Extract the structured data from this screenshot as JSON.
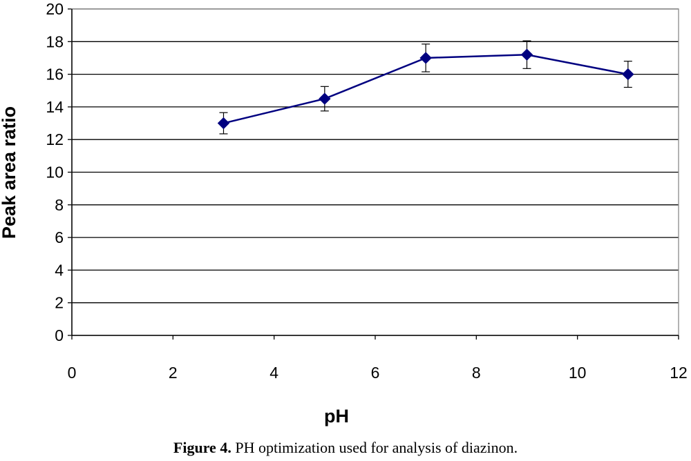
{
  "chart_data": {
    "type": "line",
    "title": "",
    "xlabel": "pH",
    "ylabel": "Peak area ratio",
    "xlim": [
      0,
      12
    ],
    "ylim": [
      0,
      20
    ],
    "xticks": [
      0,
      2,
      4,
      6,
      8,
      10,
      12
    ],
    "yticks": [
      0,
      2,
      4,
      6,
      8,
      10,
      12,
      14,
      16,
      18,
      20
    ],
    "grid": "horizontal",
    "legend": "none",
    "series": [
      {
        "color": "#000080",
        "marker": "diamond",
        "x": [
          3,
          5,
          7,
          9,
          11
        ],
        "y": [
          13.0,
          14.5,
          17.0,
          17.2,
          16.0
        ],
        "error": [
          0.65,
          0.75,
          0.85,
          0.85,
          0.8
        ]
      }
    ]
  },
  "caption": {
    "label": "Figure 4.",
    "text": " PH optimization used for analysis of diazinon."
  }
}
